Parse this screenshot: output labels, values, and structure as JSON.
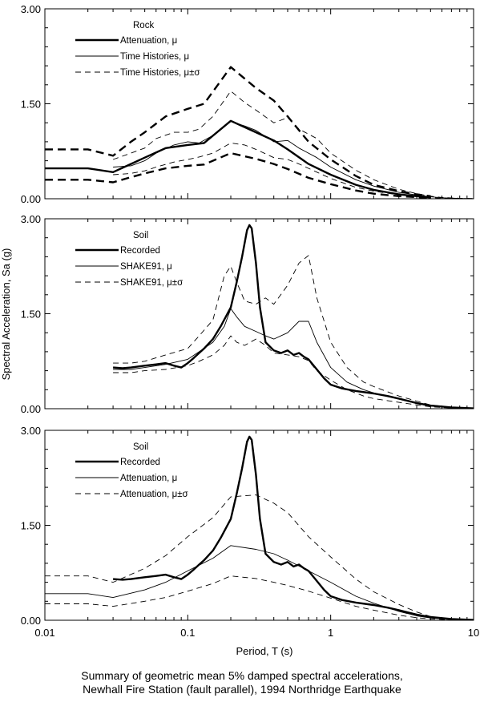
{
  "caption": {
    "line1": "Summary of geometric mean 5% damped spectral accelerations,",
    "line2": "Newhall Fire Station (fault parallel), 1994 Northridge Earthquake"
  },
  "axes": {
    "xlabel": "Period, T (s)",
    "ylabel": "Spectral Acceleration, Sa (g)",
    "x_scale": "log",
    "xlim": [
      0.01,
      10
    ],
    "xticks": [
      "0.01",
      "0.1",
      "1",
      "10"
    ],
    "ylim": [
      0,
      3
    ],
    "yticks": [
      "0.00",
      "1.50",
      "3.00"
    ]
  },
  "chart_data": [
    {
      "type": "line",
      "legend_title": "Rock",
      "legend_placement": "top-left",
      "series": [
        {
          "name": "Attenuation, μ",
          "style": "thick-solid",
          "x": [
            0.01,
            0.02,
            0.03,
            0.04,
            0.05,
            0.07,
            0.1,
            0.13,
            0.2,
            0.3,
            0.4,
            0.5,
            0.7,
            1,
            1.5,
            2,
            3,
            4,
            5
          ],
          "y": [
            0.48,
            0.48,
            0.42,
            0.55,
            0.65,
            0.8,
            0.85,
            0.88,
            1.23,
            1.05,
            0.92,
            0.78,
            0.55,
            0.38,
            0.22,
            0.14,
            0.07,
            0.04,
            0.02
          ]
        },
        {
          "name": "",
          "style": "thick-dash",
          "x": [
            0.01,
            0.02,
            0.03,
            0.04,
            0.05,
            0.07,
            0.1,
            0.13,
            0.2,
            0.3,
            0.4,
            0.5,
            0.7,
            1,
            1.5,
            2,
            3,
            4,
            5
          ],
          "y": [
            0.78,
            0.78,
            0.68,
            0.9,
            1.05,
            1.3,
            1.42,
            1.5,
            2.08,
            1.75,
            1.55,
            1.3,
            0.9,
            0.62,
            0.36,
            0.22,
            0.12,
            0.07,
            0.04
          ]
        },
        {
          "name": "",
          "style": "thick-dash",
          "x": [
            0.01,
            0.02,
            0.03,
            0.04,
            0.05,
            0.07,
            0.1,
            0.13,
            0.2,
            0.3,
            0.4,
            0.5,
            0.7,
            1,
            1.5,
            2,
            3,
            4,
            5
          ],
          "y": [
            0.3,
            0.3,
            0.26,
            0.34,
            0.4,
            0.48,
            0.52,
            0.54,
            0.72,
            0.63,
            0.55,
            0.47,
            0.33,
            0.23,
            0.13,
            0.08,
            0.04,
            0.025,
            0.012
          ]
        },
        {
          "name": "Time Histories, μ",
          "style": "thin-solid",
          "x": [
            0.03,
            0.04,
            0.05,
            0.06,
            0.08,
            0.1,
            0.12,
            0.15,
            0.2,
            0.25,
            0.3,
            0.4,
            0.5,
            0.6,
            0.8,
            1,
            1.5,
            2,
            3,
            4,
            5,
            6,
            8,
            10
          ],
          "y": [
            0.5,
            0.52,
            0.6,
            0.72,
            0.85,
            0.9,
            0.88,
            1.0,
            1.22,
            1.15,
            1.08,
            0.9,
            0.92,
            0.8,
            0.65,
            0.5,
            0.3,
            0.2,
            0.1,
            0.06,
            0.03,
            0.015,
            0.005,
            0.002
          ]
        },
        {
          "name": "Time Histories, μ±σ",
          "style": "thin-dash",
          "x": [
            0.03,
            0.04,
            0.05,
            0.06,
            0.08,
            0.1,
            0.12,
            0.15,
            0.2,
            0.25,
            0.3,
            0.4,
            0.5,
            0.6,
            0.8,
            1,
            1.5,
            2,
            3,
            4,
            5,
            6,
            8,
            10
          ],
          "y": [
            0.62,
            0.72,
            0.8,
            0.95,
            1.05,
            1.05,
            1.1,
            1.3,
            1.7,
            1.52,
            1.4,
            1.2,
            1.28,
            1.1,
            0.95,
            0.72,
            0.45,
            0.3,
            0.15,
            0.08,
            0.04,
            0.02,
            0.008,
            0.003
          ]
        },
        {
          "name": "",
          "style": "thin-dash",
          "x": [
            0.03,
            0.04,
            0.05,
            0.06,
            0.08,
            0.1,
            0.12,
            0.15,
            0.2,
            0.25,
            0.3,
            0.4,
            0.5,
            0.6,
            0.8,
            1,
            1.5,
            2,
            3,
            4,
            5,
            6,
            8,
            10
          ],
          "y": [
            0.38,
            0.4,
            0.44,
            0.5,
            0.58,
            0.62,
            0.66,
            0.72,
            0.88,
            0.85,
            0.78,
            0.65,
            0.62,
            0.55,
            0.42,
            0.32,
            0.18,
            0.12,
            0.06,
            0.035,
            0.018,
            0.008,
            0.003,
            0.001
          ]
        }
      ]
    },
    {
      "type": "line",
      "legend_title": "Soil",
      "legend_placement": "top-left",
      "series": [
        {
          "name": "Recorded",
          "style": "thick-solid",
          "x": [
            0.03,
            0.035,
            0.04,
            0.05,
            0.06,
            0.07,
            0.08,
            0.09,
            0.1,
            0.11,
            0.12,
            0.13,
            0.15,
            0.17,
            0.2,
            0.22,
            0.24,
            0.26,
            0.27,
            0.28,
            0.3,
            0.32,
            0.35,
            0.4,
            0.45,
            0.5,
            0.55,
            0.6,
            0.65,
            0.7,
            0.8,
            0.9,
            1,
            1.2,
            1.5,
            2,
            2.5,
            3,
            4,
            5,
            7,
            10
          ],
          "y": [
            0.65,
            0.64,
            0.65,
            0.68,
            0.7,
            0.72,
            0.68,
            0.65,
            0.72,
            0.8,
            0.88,
            0.95,
            1.1,
            1.3,
            1.6,
            2.0,
            2.4,
            2.82,
            2.9,
            2.85,
            2.3,
            1.6,
            1.05,
            0.92,
            0.88,
            0.92,
            0.85,
            0.88,
            0.82,
            0.78,
            0.62,
            0.48,
            0.38,
            0.32,
            0.28,
            0.24,
            0.2,
            0.16,
            0.09,
            0.05,
            0.02,
            0.005
          ]
        },
        {
          "name": "SHAKE91, μ",
          "style": "thin-solid",
          "x": [
            0.03,
            0.04,
            0.05,
            0.07,
            0.1,
            0.12,
            0.15,
            0.18,
            0.2,
            0.22,
            0.25,
            0.3,
            0.35,
            0.4,
            0.5,
            0.6,
            0.7,
            0.8,
            1,
            1.3,
            1.7,
            2,
            3,
            4,
            5,
            7,
            10
          ],
          "y": [
            0.62,
            0.62,
            0.65,
            0.7,
            0.78,
            0.9,
            1.05,
            1.3,
            1.58,
            1.45,
            1.3,
            1.22,
            1.15,
            1.1,
            1.2,
            1.38,
            1.38,
            1.05,
            0.65,
            0.42,
            0.3,
            0.25,
            0.15,
            0.08,
            0.04,
            0.015,
            0.005
          ]
        },
        {
          "name": "SHAKE91, μ±σ",
          "style": "thin-dash",
          "x": [
            0.03,
            0.04,
            0.05,
            0.07,
            0.1,
            0.12,
            0.15,
            0.18,
            0.2,
            0.22,
            0.25,
            0.3,
            0.35,
            0.4,
            0.5,
            0.6,
            0.7,
            0.8,
            1,
            1.3,
            1.7,
            2,
            3,
            4,
            5,
            7,
            10
          ],
          "y": [
            0.72,
            0.72,
            0.75,
            0.85,
            0.95,
            1.15,
            1.4,
            2.1,
            2.25,
            2.0,
            1.7,
            1.65,
            1.75,
            1.65,
            1.95,
            2.3,
            2.42,
            1.75,
            1.05,
            0.65,
            0.42,
            0.35,
            0.2,
            0.12,
            0.06,
            0.02,
            0.007
          ]
        },
        {
          "name": "",
          "style": "thin-dash",
          "x": [
            0.03,
            0.04,
            0.05,
            0.07,
            0.1,
            0.12,
            0.15,
            0.18,
            0.2,
            0.22,
            0.25,
            0.3,
            0.35,
            0.4,
            0.5,
            0.6,
            0.7,
            0.8,
            1,
            1.3,
            1.7,
            2,
            3,
            4,
            5,
            7,
            10
          ],
          "y": [
            0.57,
            0.57,
            0.6,
            0.62,
            0.68,
            0.75,
            0.85,
            1.0,
            1.15,
            1.05,
            1.0,
            1.1,
            1.0,
            0.88,
            0.85,
            0.82,
            0.76,
            0.6,
            0.45,
            0.3,
            0.2,
            0.16,
            0.1,
            0.06,
            0.03,
            0.01,
            0.003
          ]
        }
      ]
    },
    {
      "type": "line",
      "legend_title": "Soil",
      "legend_placement": "top-left",
      "series": [
        {
          "name": "Recorded",
          "style": "thick-solid",
          "x": [
            0.03,
            0.035,
            0.04,
            0.05,
            0.06,
            0.07,
            0.08,
            0.09,
            0.1,
            0.11,
            0.12,
            0.13,
            0.15,
            0.17,
            0.2,
            0.22,
            0.24,
            0.26,
            0.27,
            0.28,
            0.3,
            0.32,
            0.35,
            0.4,
            0.45,
            0.5,
            0.55,
            0.6,
            0.65,
            0.7,
            0.8,
            0.9,
            1,
            1.2,
            1.5,
            2,
            2.5,
            3,
            4,
            5,
            7,
            10
          ],
          "y": [
            0.65,
            0.64,
            0.65,
            0.68,
            0.7,
            0.72,
            0.68,
            0.65,
            0.72,
            0.8,
            0.88,
            0.95,
            1.1,
            1.3,
            1.6,
            2.0,
            2.4,
            2.82,
            2.9,
            2.85,
            2.3,
            1.6,
            1.05,
            0.92,
            0.88,
            0.92,
            0.85,
            0.88,
            0.82,
            0.78,
            0.62,
            0.48,
            0.38,
            0.32,
            0.28,
            0.24,
            0.2,
            0.16,
            0.09,
            0.05,
            0.02,
            0.005
          ]
        },
        {
          "name": "Attenuation, μ",
          "style": "thin-solid",
          "x": [
            0.01,
            0.02,
            0.03,
            0.05,
            0.07,
            0.1,
            0.15,
            0.2,
            0.3,
            0.4,
            0.5,
            0.7,
            1,
            1.5,
            2,
            3,
            4,
            5,
            7,
            10
          ],
          "y": [
            0.42,
            0.42,
            0.36,
            0.48,
            0.6,
            0.78,
            0.98,
            1.18,
            1.12,
            1.05,
            0.95,
            0.78,
            0.6,
            0.38,
            0.27,
            0.14,
            0.07,
            0.035,
            0.01,
            0.005
          ]
        },
        {
          "name": "Attenuation, μ±σ",
          "style": "thin-dash",
          "x": [
            0.01,
            0.02,
            0.03,
            0.05,
            0.07,
            0.1,
            0.15,
            0.2,
            0.3,
            0.4,
            0.5,
            0.7,
            1,
            1.5,
            2,
            3,
            4,
            5,
            7,
            10
          ],
          "y": [
            0.7,
            0.7,
            0.6,
            0.82,
            1.02,
            1.32,
            1.62,
            1.95,
            1.98,
            1.85,
            1.7,
            1.32,
            1.0,
            0.65,
            0.45,
            0.25,
            0.13,
            0.06,
            0.02,
            0.008
          ]
        },
        {
          "name": "",
          "style": "thin-dash",
          "x": [
            0.01,
            0.02,
            0.03,
            0.05,
            0.07,
            0.1,
            0.15,
            0.2,
            0.3,
            0.4,
            0.5,
            0.7,
            1,
            1.5,
            2,
            3,
            4,
            5,
            7,
            10
          ],
          "y": [
            0.26,
            0.26,
            0.22,
            0.3,
            0.36,
            0.46,
            0.58,
            0.7,
            0.66,
            0.6,
            0.55,
            0.46,
            0.35,
            0.22,
            0.16,
            0.08,
            0.04,
            0.02,
            0.006,
            0.002
          ]
        }
      ]
    }
  ]
}
